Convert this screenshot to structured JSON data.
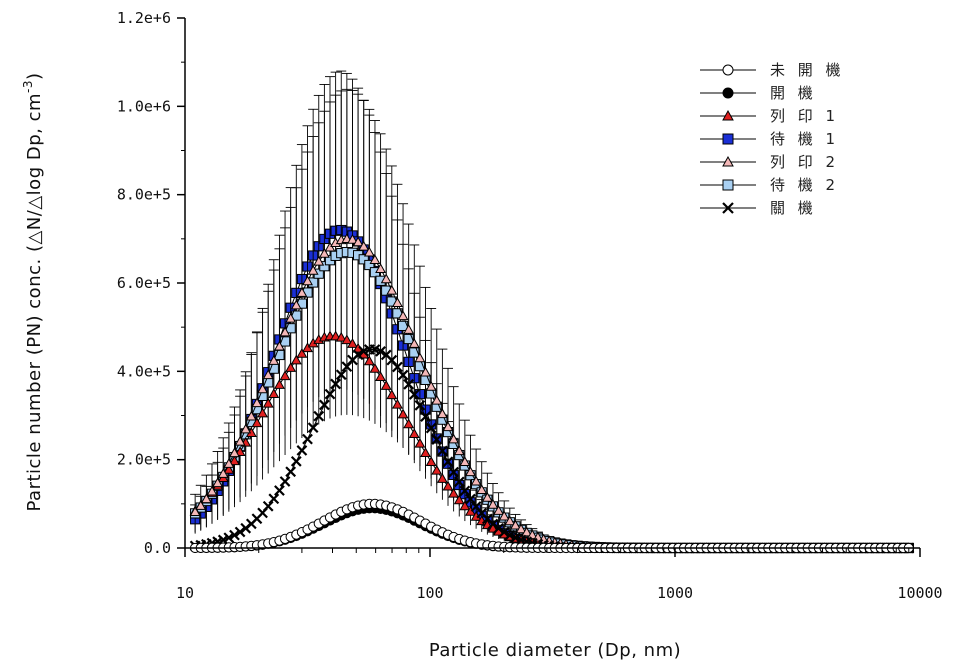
{
  "chart_data": {
    "type": "line",
    "xlabel": "Particle diameter (Dp, nm)",
    "ylabel": "Particle number (PN) conc. (△N/△log Dp, cm",
    "ylabel_sup": "-3",
    "ylabel_close": ")",
    "x_scale": "log",
    "xlim": [
      10,
      10000
    ],
    "ylim": [
      0,
      1200000
    ],
    "x_ticks": [
      10,
      100,
      1000,
      10000
    ],
    "x_tick_labels": [
      "10",
      "100",
      "1000",
      "10000"
    ],
    "y_ticks": [
      0,
      200000,
      400000,
      600000,
      800000,
      1000000,
      1200000
    ],
    "y_tick_labels": [
      "0.0",
      "2.0e+5",
      "4.0e+5",
      "6.0e+5",
      "8.0e+5",
      "1.0e+6",
      "1.2e+6"
    ],
    "grid": false,
    "legend_position": "top-right",
    "colors": {
      "axis": "#000000",
      "print1_fill": "#e02020",
      "standby1_fill": "#1a2fd6",
      "print2_fill": "#f4b8b8",
      "standby2_fill": "#a9d0f2"
    },
    "series": [
      {
        "name": "未 開 機",
        "marker": "circle-open",
        "x_range": [
          11,
          9000
        ],
        "peak_x": 58,
        "peak_y": 100000,
        "sigma_log": 0.2,
        "error_frac": 0
      },
      {
        "name": "開 機",
        "marker": "circle-filled",
        "x_range": [
          11,
          9000
        ],
        "peak_x": 58,
        "peak_y": 90000,
        "sigma_log": 0.2,
        "error_frac": 0
      },
      {
        "name": "列 印 1",
        "marker": "triangle-red",
        "x_range": [
          11,
          9000
        ],
        "peak_x": 40,
        "peak_y": 480000,
        "sigma_log": 0.3,
        "error_frac": 0
      },
      {
        "name": "待 機 1",
        "marker": "square-blue",
        "x_range": [
          11,
          9000
        ],
        "peak_x": 43,
        "peak_y": 720000,
        "sigma_log": 0.27,
        "error_frac": 0.5
      },
      {
        "name": "列 印 2",
        "marker": "triangle-pink",
        "x_range": [
          11,
          9000
        ],
        "peak_x": 46,
        "peak_y": 700000,
        "sigma_log": 0.3,
        "error_frac": 0
      },
      {
        "name": "待 機 2",
        "marker": "square-lightblue",
        "x_range": [
          11,
          9000
        ],
        "peak_x": 46,
        "peak_y": 670000,
        "sigma_log": 0.3,
        "error_frac": 0.55
      },
      {
        "name": "關 機",
        "marker": "x-cross",
        "x_range": [
          11,
          9000
        ],
        "peak_x": 58,
        "peak_y": 450000,
        "sigma_log": 0.24,
        "error_frac": 0
      }
    ]
  }
}
